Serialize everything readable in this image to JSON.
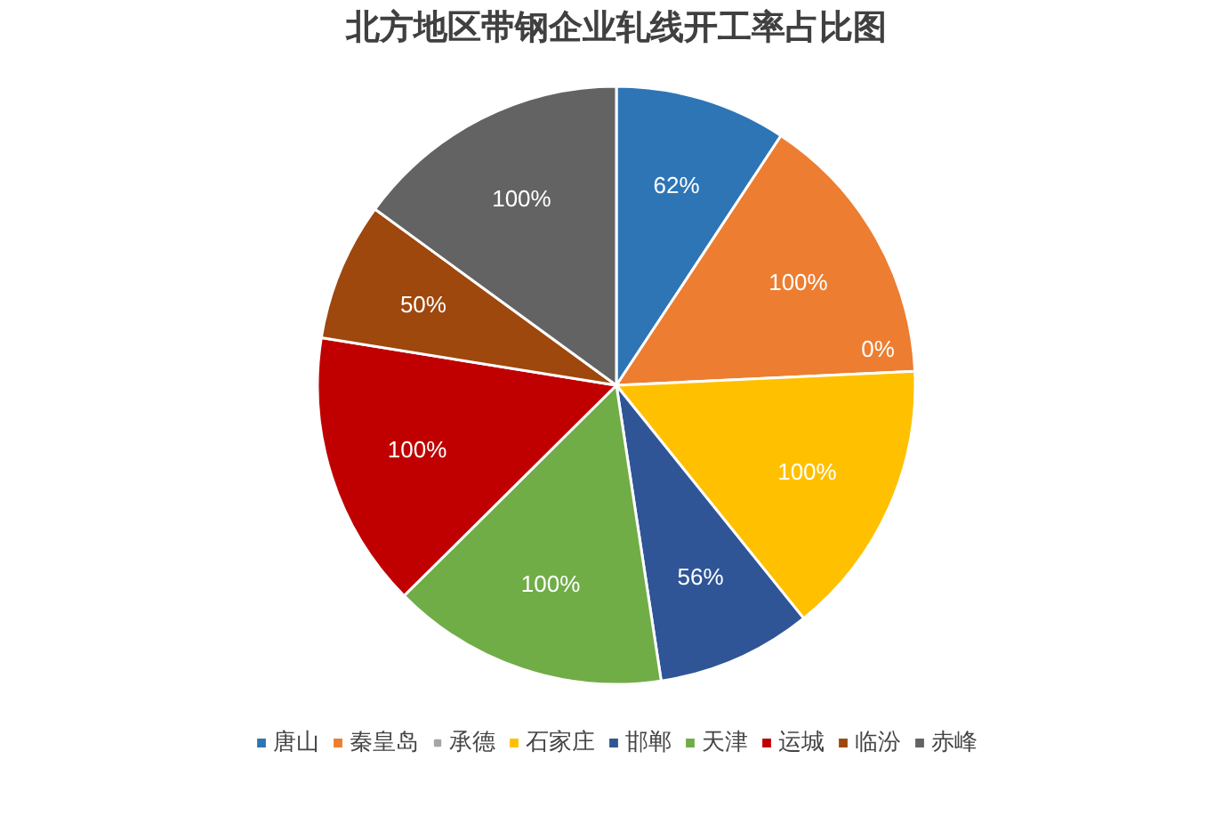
{
  "chart_data": {
    "type": "pie",
    "title": "北方地区带钢企业轧线开工率占比图",
    "categories": [
      "唐山",
      "秦皇岛",
      "承德",
      "石家庄",
      "邯郸",
      "天津",
      "运城",
      "临汾",
      "赤峰"
    ],
    "values": [
      62,
      100,
      0,
      100,
      56,
      100,
      100,
      50,
      100
    ],
    "value_labels": [
      "62%",
      "100%",
      "0%",
      "100%",
      "56%",
      "100%",
      "100%",
      "50%",
      "100%"
    ],
    "colors": [
      "#2e75b6",
      "#ed7d31",
      "#a5a5a5",
      "#ffc000",
      "#2f5597",
      "#70ad47",
      "#c00000",
      "#9e480e",
      "#636363"
    ],
    "legend": "bottom"
  }
}
